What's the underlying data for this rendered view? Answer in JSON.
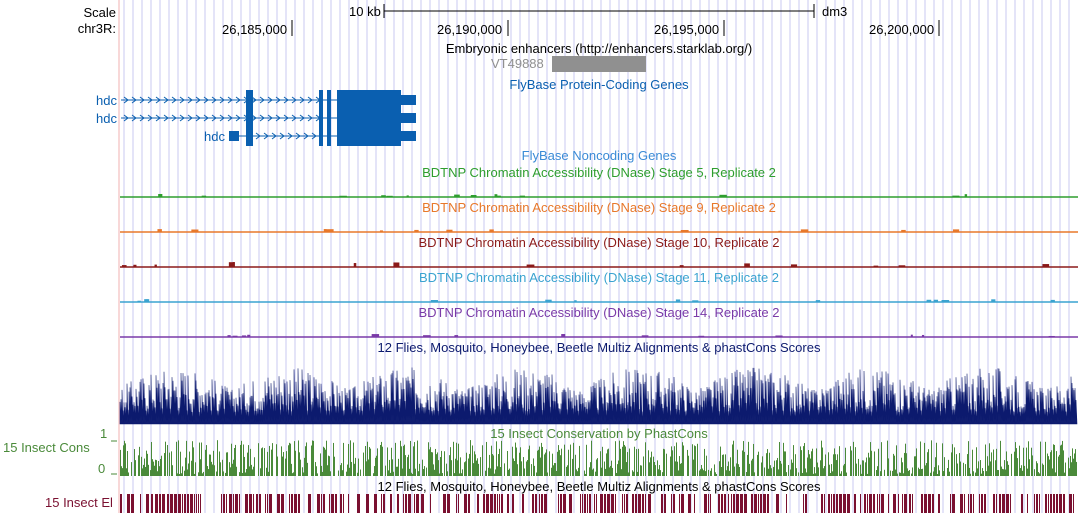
{
  "ruler": {
    "scale_label": "Scale",
    "chrom_label": "chr3R:",
    "scale_bar_label": "10 kb",
    "assembly": "dm3",
    "positions": [
      "26,185,000",
      "26,190,000",
      "26,195,000",
      "26,200,000"
    ]
  },
  "tracks": {
    "enhancers": {
      "title": "Embryonic enhancers (http://enhancers.starklab.org/)",
      "item": "VT49888"
    },
    "flybase_coding": {
      "title": "FlyBase Protein-Coding Genes",
      "genes": [
        "hdc",
        "hdc",
        "hdc"
      ]
    },
    "flybase_noncoding": {
      "title": "FlyBase Noncoding Genes"
    },
    "dnase": [
      {
        "title": "BDTNP Chromatin Accessibility (DNase) Stage 5, Replicate 2",
        "color": "#2e9e2e"
      },
      {
        "title": "BDTNP Chromatin Accessibility (DNase) Stage 9, Replicate 2",
        "color": "#e8782a"
      },
      {
        "title": "BDTNP Chromatin Accessibility (DNase) Stage 10, Replicate 2",
        "color": "#8b1a1a"
      },
      {
        "title": "BDTNP Chromatin Accessibility (DNase) Stage 11, Replicate 2",
        "color": "#3aa3d0"
      },
      {
        "title": "BDTNP Chromatin Accessibility (DNase) Stage 14, Replicate 2",
        "color": "#7a3aa8"
      }
    ],
    "multiz": {
      "title": "12 Flies, Mosquito, Honeybee, Beetle Multiz Alignments & phastCons Scores",
      "color": "#0c1a6e"
    },
    "phastcons": {
      "title": "15 Insect Conservation by PhastCons",
      "left_label": "15 Insect Cons",
      "ymax": "1",
      "ymin": "0",
      "color": "#4a8a3a"
    },
    "elements": {
      "title": "12 Flies, Mosquito, Honeybee, Beetle Multiz Alignments & phastCons Scores",
      "left_label": "15 Insect El",
      "color": "#7a1030"
    }
  },
  "colors": {
    "gene": "#0a5fb0",
    "grid": "#c8c8f0",
    "enhancer_box": "#909090",
    "enhancer_text": "#909090",
    "noncoding_title": "#3a8ad6"
  }
}
